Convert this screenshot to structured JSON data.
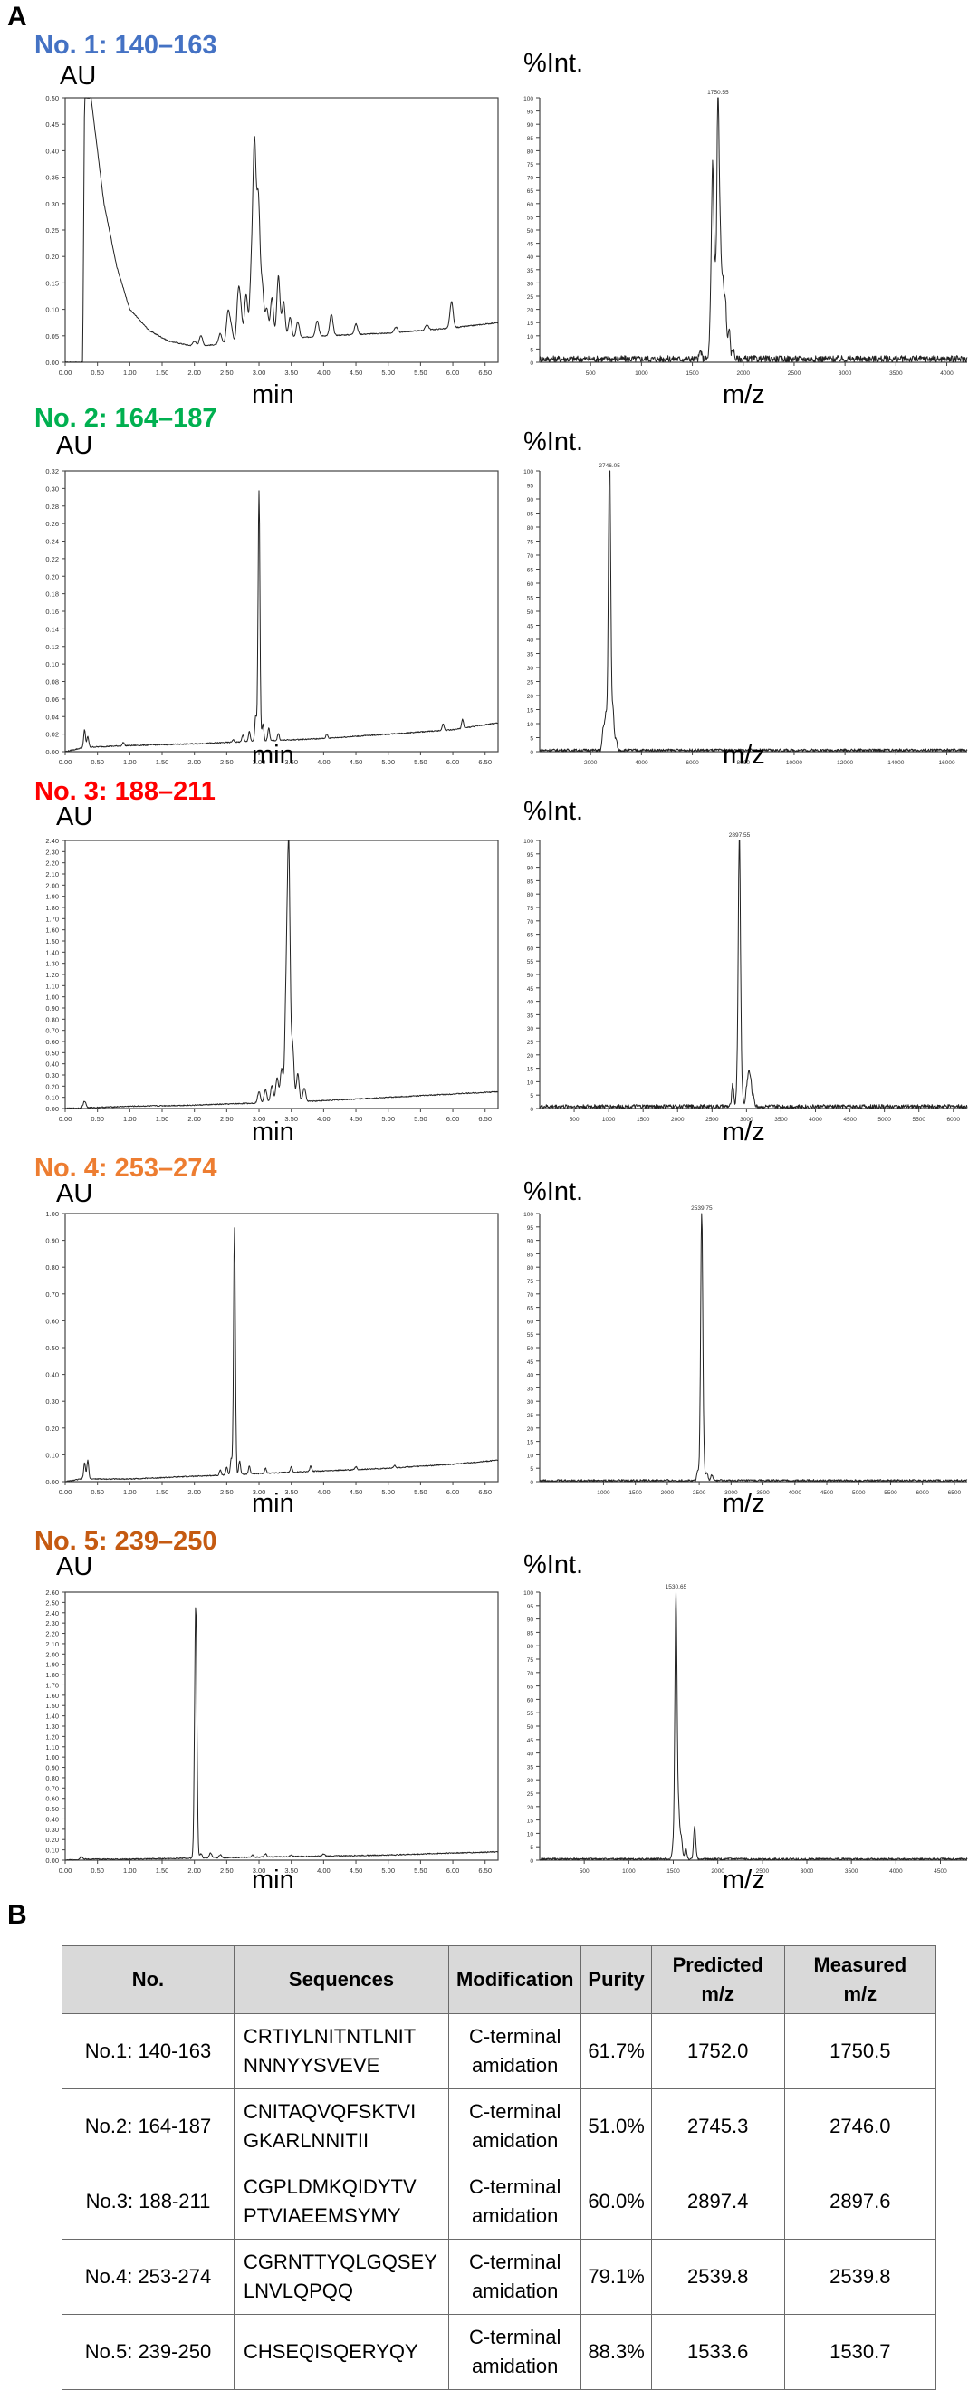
{
  "panel_labels": {
    "a": "A",
    "b": "B"
  },
  "title_colors": [
    "#4472c4",
    "#00b050",
    "#ff0000",
    "#ed7d31",
    "#c55a11"
  ],
  "chart_data": [
    {
      "type": "line",
      "role": "chromatogram",
      "panel": "No. 1: 140–163",
      "ylabel": "AU",
      "xlabel": "min",
      "xlim": [
        0,
        6.7
      ],
      "ylim": [
        0,
        0.5
      ],
      "xticks": [
        "0.00",
        "0.50",
        "1.00",
        "1.50",
        "2.00",
        "2.50",
        "3.00",
        "3.50",
        "4.00",
        "4.50",
        "5.00",
        "5.50",
        "6.00",
        "6.50"
      ],
      "yticks": [
        "0.00",
        "0.05",
        "0.10",
        "0.15",
        "0.20",
        "0.25",
        "0.30",
        "0.35",
        "0.40",
        "0.45",
        "0.50"
      ],
      "baseline": [
        [
          0,
          0
        ],
        [
          0.27,
          0
        ],
        [
          0.3,
          0.5
        ],
        [
          0.4,
          0.5
        ],
        [
          0.44,
          0.46
        ],
        [
          0.6,
          0.3
        ],
        [
          0.8,
          0.18
        ],
        [
          1.0,
          0.1
        ],
        [
          1.3,
          0.06
        ],
        [
          1.6,
          0.04
        ],
        [
          2.0,
          0.03
        ],
        [
          3.0,
          0.04
        ],
        [
          4.0,
          0.05
        ],
        [
          5.0,
          0.055
        ],
        [
          6.0,
          0.065
        ],
        [
          6.7,
          0.075
        ]
      ],
      "peaks": [
        [
          2.0,
          0.01
        ],
        [
          2.1,
          0.02
        ],
        [
          2.4,
          0.02
        ],
        [
          2.52,
          0.06
        ],
        [
          2.57,
          0.03
        ],
        [
          2.68,
          0.09
        ],
        [
          2.72,
          0.05
        ],
        [
          2.8,
          0.09
        ],
        [
          2.88,
          0.12
        ],
        [
          2.93,
          0.36
        ],
        [
          2.99,
          0.26
        ],
        [
          3.05,
          0.1
        ],
        [
          3.12,
          0.06
        ],
        [
          3.2,
          0.08
        ],
        [
          3.3,
          0.12
        ],
        [
          3.38,
          0.07
        ],
        [
          3.48,
          0.04
        ],
        [
          3.6,
          0.03
        ],
        [
          3.9,
          0.03
        ],
        [
          4.12,
          0.04
        ],
        [
          4.5,
          0.02
        ],
        [
          5.12,
          0.01
        ],
        [
          5.6,
          0.01
        ],
        [
          5.98,
          0.05
        ]
      ],
      "peak_width": 0.035
    },
    {
      "type": "line",
      "role": "mass_spectrum",
      "panel": "No. 1: 140–163",
      "ylabel": "%Int.",
      "xlabel": "m/z",
      "xlim": [
        0,
        4200
      ],
      "ylim": [
        0,
        100
      ],
      "xticks": [
        "500",
        "1000",
        "1500",
        "2000",
        "2500",
        "3000",
        "3500",
        "4000"
      ],
      "yticks": [
        "0",
        "5",
        "10",
        "15",
        "20",
        "25",
        "30",
        "35",
        "40",
        "45",
        "50",
        "55",
        "60",
        "65",
        "70",
        "75",
        "80",
        "85",
        "90",
        "95",
        "100"
      ],
      "peak_label": "1750.55",
      "noise": 2.5,
      "peaks": [
        [
          1680,
          18
        ],
        [
          1700,
          70
        ],
        [
          1725,
          30
        ],
        [
          1752,
          100
        ],
        [
          1775,
          42
        ],
        [
          1800,
          28
        ],
        [
          1825,
          22
        ],
        [
          1860,
          12
        ],
        [
          1900,
          4
        ],
        [
          1580,
          3
        ]
      ]
    },
    {
      "type": "line",
      "role": "chromatogram",
      "panel": "No. 2: 164–187",
      "ylabel": "AU",
      "xlabel": "min",
      "xlim": [
        0,
        6.7
      ],
      "ylim": [
        0,
        0.32
      ],
      "xticks": [
        "0.00",
        "0.50",
        "1.00",
        "1.50",
        "2.00",
        "2.50",
        "3.00",
        "3.50",
        "4.00",
        "4.50",
        "5.00",
        "5.50",
        "6.00",
        "6.50"
      ],
      "yticks": [
        "0.00",
        "0.02",
        "0.04",
        "0.06",
        "0.08",
        "0.10",
        "0.12",
        "0.14",
        "0.16",
        "0.18",
        "0.20",
        "0.22",
        "0.24",
        "0.26",
        "0.28",
        "0.30",
        "0.32"
      ],
      "baseline": [
        [
          0,
          0
        ],
        [
          0.3,
          0.005
        ],
        [
          1.0,
          0.007
        ],
        [
          2.0,
          0.009
        ],
        [
          3.0,
          0.012
        ],
        [
          4.0,
          0.015
        ],
        [
          5.0,
          0.02
        ],
        [
          6.0,
          0.025
        ],
        [
          6.7,
          0.033
        ]
      ],
      "peaks": [
        [
          0.3,
          0.02
        ],
        [
          0.35,
          0.012
        ],
        [
          0.9,
          0.004
        ],
        [
          2.6,
          0.003
        ],
        [
          2.75,
          0.008
        ],
        [
          2.85,
          0.012
        ],
        [
          2.95,
          0.03
        ],
        [
          3.0,
          0.285
        ],
        [
          3.06,
          0.02
        ],
        [
          3.15,
          0.015
        ],
        [
          3.3,
          0.008
        ],
        [
          4.05,
          0.005
        ],
        [
          5.85,
          0.008
        ],
        [
          6.15,
          0.01
        ]
      ],
      "peak_width": 0.02
    },
    {
      "type": "line",
      "role": "mass_spectrum",
      "panel": "No. 2: 164–187",
      "ylabel": "%Int.",
      "xlabel": "m/z",
      "xlim": [
        0,
        16800
      ],
      "ylim": [
        0,
        100
      ],
      "xticks": [
        "2000",
        "4000",
        "6000",
        "8000",
        "10000",
        "12000",
        "14000",
        "16000"
      ],
      "yticks": [
        "0",
        "5",
        "10",
        "15",
        "20",
        "25",
        "30",
        "35",
        "40",
        "45",
        "50",
        "55",
        "60",
        "65",
        "70",
        "75",
        "80",
        "85",
        "90",
        "95",
        "100"
      ],
      "peak_label": "2746.05",
      "noise": 1.0,
      "peaks": [
        [
          2500,
          8
        ],
        [
          2600,
          12
        ],
        [
          2690,
          10
        ],
        [
          2746,
          100
        ],
        [
          2800,
          8
        ],
        [
          2880,
          14
        ],
        [
          3000,
          4
        ]
      ]
    },
    {
      "type": "line",
      "role": "chromatogram",
      "panel": "No. 3: 188–211",
      "ylabel": "AU",
      "xlabel": "min",
      "xlim": [
        0,
        6.7
      ],
      "ylim": [
        0,
        2.4
      ],
      "xticks": [
        "0.00",
        "0.50",
        "1.00",
        "1.50",
        "2.00",
        "2.50",
        "3.00",
        "3.50",
        "4.00",
        "4.50",
        "5.00",
        "5.50",
        "6.00",
        "6.50"
      ],
      "yticks": [
        "0.00",
        "0.10",
        "0.20",
        "0.30",
        "0.40",
        "0.50",
        "0.60",
        "0.70",
        "0.80",
        "0.90",
        "1.00",
        "1.10",
        "1.20",
        "1.30",
        "1.40",
        "1.50",
        "1.60",
        "1.70",
        "1.80",
        "1.90",
        "2.00",
        "2.10",
        "2.20",
        "2.30",
        "2.40"
      ],
      "baseline": [
        [
          0,
          0
        ],
        [
          1.0,
          0.02
        ],
        [
          2.0,
          0.03
        ],
        [
          3.0,
          0.05
        ],
        [
          4.0,
          0.07
        ],
        [
          5.0,
          0.1
        ],
        [
          6.0,
          0.13
        ],
        [
          6.7,
          0.15
        ]
      ],
      "peaks": [
        [
          0.3,
          0.06
        ],
        [
          3.0,
          0.1
        ],
        [
          3.1,
          0.12
        ],
        [
          3.2,
          0.15
        ],
        [
          3.28,
          0.22
        ],
        [
          3.35,
          0.3
        ],
        [
          3.42,
          0.9
        ],
        [
          3.46,
          2.2
        ],
        [
          3.52,
          0.5
        ],
        [
          3.6,
          0.25
        ],
        [
          3.7,
          0.12
        ]
      ],
      "peak_width": 0.03
    },
    {
      "type": "line",
      "role": "mass_spectrum",
      "panel": "No. 3: 188–211",
      "ylabel": "%Int.",
      "xlabel": "m/z",
      "xlim": [
        0,
        6200
      ],
      "ylim": [
        0,
        100
      ],
      "xticks": [
        "500",
        "1000",
        "1500",
        "2000",
        "2500",
        "3000",
        "3500",
        "4000",
        "4500",
        "5000",
        "5500",
        "6000"
      ],
      "yticks": [
        "0",
        "5",
        "10",
        "15",
        "20",
        "25",
        "30",
        "35",
        "40",
        "45",
        "50",
        "55",
        "60",
        "65",
        "70",
        "75",
        "80",
        "85",
        "90",
        "95",
        "100"
      ],
      "peak_label": "2897.55",
      "noise": 1.5,
      "peaks": [
        [
          2800,
          8
        ],
        [
          2870,
          10
        ],
        [
          2897,
          100
        ],
        [
          2930,
          8
        ],
        [
          3000,
          6
        ],
        [
          3030,
          11
        ],
        [
          3060,
          9
        ],
        [
          3100,
          4
        ]
      ]
    },
    {
      "type": "line",
      "role": "chromatogram",
      "panel": "No. 4: 253–274",
      "ylabel": "AU",
      "xlabel": "min",
      "xlim": [
        0,
        6.7
      ],
      "ylim": [
        0,
        1.0
      ],
      "xticks": [
        "0.00",
        "0.50",
        "1.00",
        "1.50",
        "2.00",
        "2.50",
        "3.00",
        "3.50",
        "4.00",
        "4.50",
        "5.00",
        "5.50",
        "6.00",
        "6.50"
      ],
      "yticks": [
        "0.00",
        "0.10",
        "0.20",
        "0.30",
        "0.40",
        "0.50",
        "0.60",
        "0.70",
        "0.80",
        "0.90",
        "1.00"
      ],
      "baseline": [
        [
          0,
          0
        ],
        [
          0.25,
          0.01
        ],
        [
          1.0,
          0.01
        ],
        [
          2.0,
          0.02
        ],
        [
          3.0,
          0.03
        ],
        [
          4.0,
          0.04
        ],
        [
          5.0,
          0.05
        ],
        [
          6.0,
          0.065
        ],
        [
          6.7,
          0.08
        ]
      ],
      "peaks": [
        [
          0.3,
          0.06
        ],
        [
          0.35,
          0.07
        ],
        [
          2.4,
          0.02
        ],
        [
          2.5,
          0.03
        ],
        [
          2.57,
          0.06
        ],
        [
          2.62,
          0.92
        ],
        [
          2.7,
          0.05
        ],
        [
          2.85,
          0.03
        ],
        [
          3.1,
          0.02
        ],
        [
          3.5,
          0.02
        ],
        [
          3.8,
          0.02
        ],
        [
          4.5,
          0.01
        ],
        [
          5.1,
          0.01
        ]
      ],
      "peak_width": 0.02
    },
    {
      "type": "line",
      "role": "mass_spectrum",
      "panel": "No. 4: 253–274",
      "ylabel": "%Int.",
      "xlabel": "m/z",
      "xlim": [
        0,
        6700
      ],
      "ylim": [
        0,
        100
      ],
      "xticks": [
        "1000",
        "1500",
        "2000",
        "2500",
        "3000",
        "3500",
        "4000",
        "4500",
        "5000",
        "5500",
        "6000",
        "6500"
      ],
      "yticks": [
        "0",
        "5",
        "10",
        "15",
        "20",
        "25",
        "30",
        "35",
        "40",
        "45",
        "50",
        "55",
        "60",
        "65",
        "70",
        "75",
        "80",
        "85",
        "90",
        "95",
        "100"
      ],
      "peak_label": "2539.75",
      "noise": 0.8,
      "peaks": [
        [
          2480,
          4
        ],
        [
          2539,
          100
        ],
        [
          2570,
          6
        ],
        [
          2620,
          3
        ],
        [
          2700,
          2
        ]
      ]
    },
    {
      "type": "line",
      "role": "chromatogram",
      "panel": "No. 5: 239–250",
      "ylabel": "AU",
      "xlabel": "min",
      "xlim": [
        0,
        6.7
      ],
      "ylim": [
        0,
        2.6
      ],
      "xticks": [
        "0.00",
        "0.50",
        "1.00",
        "1.50",
        "2.00",
        "2.50",
        "3.00",
        "3.50",
        "4.00",
        "4.50",
        "5.00",
        "5.50",
        "6.00",
        "6.50"
      ],
      "yticks": [
        "0.00",
        "0.10",
        "0.20",
        "0.30",
        "0.40",
        "0.50",
        "0.60",
        "0.70",
        "0.80",
        "0.90",
        "1.00",
        "1.10",
        "1.20",
        "1.30",
        "1.40",
        "1.50",
        "1.60",
        "1.70",
        "1.80",
        "1.90",
        "2.00",
        "2.10",
        "2.20",
        "2.30",
        "2.40",
        "2.50",
        "2.60"
      ],
      "baseline": [
        [
          0,
          0
        ],
        [
          0.3,
          0.01
        ],
        [
          1.0,
          0.01
        ],
        [
          2.0,
          0.02
        ],
        [
          3.0,
          0.03
        ],
        [
          4.0,
          0.04
        ],
        [
          5.0,
          0.05
        ],
        [
          6.0,
          0.07
        ],
        [
          6.7,
          0.08
        ]
      ],
      "peaks": [
        [
          0.25,
          0.03
        ],
        [
          2.02,
          2.45
        ],
        [
          2.1,
          0.04
        ],
        [
          2.25,
          0.05
        ],
        [
          2.4,
          0.03
        ],
        [
          2.9,
          0.02
        ],
        [
          3.1,
          0.03
        ],
        [
          3.5,
          0.02
        ],
        [
          4.0,
          0.02
        ]
      ],
      "peak_width": 0.025
    },
    {
      "type": "line",
      "role": "mass_spectrum",
      "panel": "No. 5: 239–250",
      "ylabel": "%Int.",
      "xlabel": "m/z",
      "xlim": [
        0,
        4800
      ],
      "ylim": [
        0,
        100
      ],
      "xticks": [
        "500",
        "1000",
        "1500",
        "2000",
        "2500",
        "3000",
        "3500",
        "4000",
        "4500"
      ],
      "yticks": [
        "0",
        "5",
        "10",
        "15",
        "20",
        "25",
        "30",
        "35",
        "40",
        "45",
        "50",
        "55",
        "60",
        "65",
        "70",
        "75",
        "80",
        "85",
        "90",
        "95",
        "100"
      ],
      "peak_label": "1530.65",
      "noise": 0.8,
      "peaks": [
        [
          1500,
          5
        ],
        [
          1530,
          100
        ],
        [
          1560,
          18
        ],
        [
          1590,
          8
        ],
        [
          1640,
          4
        ],
        [
          1740,
          12
        ]
      ]
    },
    {
      "type": "table",
      "columns": [
        "No.",
        "Sequences",
        "Modification",
        "Purity",
        "Predicted m/z",
        "Measured m/z"
      ],
      "rows": [
        {
          "no": "No.1: 140-163",
          "seq1": "CRTIYLNITNTLNIT",
          "seq2": "NNNYYSVEVE",
          "mod1": "C-terminal",
          "mod2": "amidation",
          "purity": "61.7%",
          "predicted": "1752.0",
          "measured": "1750.5"
        },
        {
          "no": "No.2: 164-187",
          "seq1": "CNITAQVQFSKTVI",
          "seq2": "GKARLNNITII",
          "mod1": "C-terminal",
          "mod2": "amidation",
          "purity": "51.0%",
          "predicted": "2745.3",
          "measured": "2746.0"
        },
        {
          "no": "No.3: 188-211",
          "seq1": "CGPLDMKQIDYTV",
          "seq2": "PTVIAEEMSYMY",
          "mod1": "C-terminal",
          "mod2": "amidation",
          "purity": "60.0%",
          "predicted": "2897.4",
          "measured": "2897.6"
        },
        {
          "no": "No.4: 253-274",
          "seq1": "CGRNTTYQLGQSEY",
          "seq2": "LNVLQPQQ",
          "mod1": "C-terminal",
          "mod2": "amidation",
          "purity": "79.1%",
          "predicted": "2539.8",
          "measured": "2539.8"
        },
        {
          "no": "No.5: 239-250",
          "seq1": "CHSEQISQERYQY",
          "seq2": "",
          "mod1": "C-terminal",
          "mod2": "amidation",
          "purity": "88.3%",
          "predicted": "1533.6",
          "measured": "1530.7"
        }
      ]
    }
  ],
  "table": {
    "headers": {
      "no": "No.",
      "seq": "Sequences",
      "mod": "Modification",
      "purity": "Purity",
      "pred1": "Predicted",
      "pred2": "m/z",
      "meas1": "Measured",
      "meas2": "m/z"
    }
  }
}
